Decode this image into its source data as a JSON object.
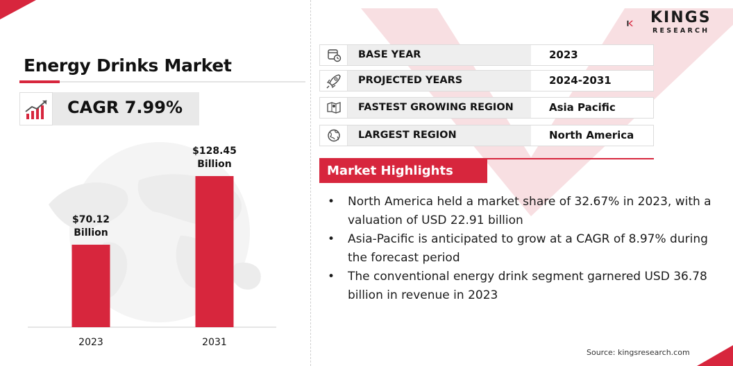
{
  "title": "Energy Drinks Market",
  "cagr": "CAGR 7.99%",
  "info_rows": [
    {
      "label": "BASE YEAR",
      "value": "2023",
      "icon": "calendar-clock-icon"
    },
    {
      "label": "PROJECTED YEARS",
      "value": "2024-2031",
      "icon": "rocket-icon"
    },
    {
      "label": "FASTEST GROWING REGION",
      "value": "Asia Pacific",
      "icon": "map-region-icon"
    },
    {
      "label": "LARGEST REGION",
      "value": "North America",
      "icon": "globe-icon"
    }
  ],
  "highlights": {
    "heading": "Market Highlights",
    "items": [
      "North America held a market share of 32.67% in 2023, with a valuation of USD 22.91 billion",
      "Asia-Pacific is anticipated to grow at a CAGR of 8.97% during the forecast period",
      "The conventional energy drink segment garnered USD 36.78 billion in revenue in 2023"
    ]
  },
  "source": "Source: kingsresearch.com",
  "logo": {
    "kings": "KINGS",
    "research": "RESEARCH"
  },
  "colors": {
    "accent": "#d7263d",
    "bar": "#d7263d",
    "text": "#1a1a1a"
  },
  "chart_data": {
    "type": "bar",
    "categories": [
      "2023",
      "2031"
    ],
    "values": [
      70.12,
      128.45
    ],
    "data_labels": [
      [
        "$70.12",
        "Billion"
      ],
      [
        "$128.45",
        "Billion"
      ]
    ],
    "title": "",
    "xlabel": "",
    "ylabel": "",
    "ylim": [
      0,
      128.45
    ],
    "grid": false,
    "legend": "none"
  }
}
